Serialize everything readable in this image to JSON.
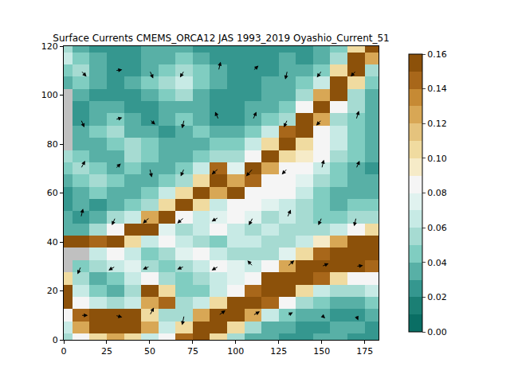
{
  "chart_data": {
    "type": "heatmap",
    "title": "Surface Currents CMEMS_ORCA12 JAS 1993_2019 Oyashio_Current_51",
    "x": [
      0,
      10,
      20,
      30,
      40,
      50,
      60,
      70,
      80,
      90,
      100,
      110,
      120,
      130,
      140,
      150,
      160,
      170,
      180
    ],
    "y": [
      0,
      5,
      10,
      15,
      20,
      25,
      30,
      35,
      40,
      45,
      50,
      55,
      60,
      65,
      70,
      75,
      80,
      85,
      90,
      95,
      100,
      105,
      110,
      115,
      120
    ],
    "z": [
      [
        0.05,
        0.08,
        0.1,
        0.12,
        0.1,
        0.06,
        0.08,
        0.14,
        0.15,
        0.1,
        0.05,
        0.03,
        0.03,
        0.02,
        0.02,
        0.03,
        0.03,
        0.02,
        0.02
      ],
      [
        0.06,
        0.12,
        0.15,
        0.15,
        0.15,
        0.12,
        0.06,
        0.1,
        0.15,
        0.15,
        0.1,
        0.05,
        0.03,
        0.03,
        0.02,
        0.02,
        0.03,
        0.03,
        0.02
      ],
      [
        0.08,
        0.14,
        0.15,
        0.15,
        0.15,
        0.1,
        0.05,
        0.05,
        0.12,
        0.15,
        0.15,
        0.12,
        0.06,
        0.04,
        0.03,
        0.03,
        0.02,
        0.02,
        0.03
      ],
      [
        0.15,
        0.08,
        0.06,
        0.05,
        0.06,
        0.12,
        0.14,
        0.05,
        0.06,
        0.1,
        0.15,
        0.15,
        0.14,
        0.08,
        0.05,
        0.04,
        0.03,
        0.03,
        0.04
      ],
      [
        0.15,
        0.06,
        0.04,
        0.03,
        0.05,
        0.15,
        0.1,
        0.04,
        0.04,
        0.06,
        0.08,
        0.14,
        0.15,
        0.15,
        0.1,
        0.06,
        0.05,
        0.05,
        0.06
      ],
      [
        0.1,
        0.05,
        0.03,
        0.04,
        0.06,
        0.08,
        0.05,
        0.04,
        0.05,
        0.06,
        0.07,
        0.08,
        0.15,
        0.15,
        0.15,
        0.14,
        0.1,
        0.08,
        0.08
      ],
      [
        null,
        0.04,
        0.05,
        0.06,
        0.07,
        0.05,
        0.04,
        0.05,
        0.06,
        0.08,
        0.07,
        0.06,
        0.08,
        0.12,
        0.15,
        0.15,
        0.15,
        0.15,
        0.14
      ],
      [
        null,
        null,
        0.06,
        0.08,
        0.06,
        0.04,
        0.05,
        0.07,
        0.08,
        0.06,
        0.05,
        0.05,
        0.05,
        0.07,
        0.1,
        0.14,
        0.15,
        0.15,
        0.15
      ],
      [
        0.15,
        0.15,
        0.14,
        0.15,
        0.1,
        0.06,
        0.08,
        0.06,
        0.05,
        0.04,
        0.06,
        0.06,
        0.05,
        0.05,
        0.06,
        0.09,
        0.12,
        0.15,
        0.15
      ],
      [
        0.03,
        0.03,
        0.05,
        0.08,
        0.15,
        0.15,
        0.07,
        0.05,
        0.06,
        0.08,
        0.06,
        0.05,
        0.06,
        0.05,
        0.05,
        0.05,
        0.06,
        0.08,
        0.1
      ],
      [
        0.03,
        0.02,
        0.03,
        0.05,
        0.06,
        0.12,
        0.15,
        0.08,
        0.06,
        0.07,
        0.08,
        0.07,
        0.05,
        0.06,
        0.05,
        0.04,
        0.04,
        0.05,
        0.05
      ],
      [
        0.02,
        0.03,
        0.02,
        0.03,
        0.04,
        0.05,
        0.1,
        0.15,
        0.1,
        0.06,
        0.08,
        0.08,
        0.07,
        0.06,
        0.05,
        0.04,
        0.03,
        0.04,
        0.04
      ],
      [
        0.02,
        0.03,
        0.04,
        0.03,
        0.03,
        0.04,
        0.06,
        0.1,
        0.15,
        0.12,
        0.15,
        0.08,
        0.08,
        0.08,
        0.06,
        0.04,
        0.03,
        0.03,
        0.03
      ],
      [
        0.03,
        0.04,
        0.05,
        0.04,
        0.03,
        0.03,
        0.04,
        0.05,
        0.1,
        0.15,
        0.12,
        0.14,
        0.08,
        0.08,
        0.07,
        0.05,
        0.04,
        0.03,
        0.03
      ],
      [
        0.04,
        0.05,
        0.04,
        0.03,
        0.04,
        0.03,
        0.03,
        0.04,
        0.06,
        0.14,
        0.07,
        0.15,
        0.12,
        0.08,
        0.08,
        0.06,
        0.04,
        0.03,
        0.02
      ],
      [
        0.05,
        0.04,
        0.03,
        0.03,
        0.05,
        0.04,
        0.03,
        0.03,
        0.04,
        0.05,
        0.05,
        0.08,
        0.15,
        0.1,
        0.09,
        0.08,
        0.05,
        0.04,
        0.03
      ],
      [
        null,
        0.03,
        0.03,
        0.04,
        0.05,
        0.04,
        0.03,
        0.03,
        0.03,
        0.04,
        0.04,
        0.06,
        0.1,
        0.15,
        0.1,
        0.08,
        0.06,
        0.04,
        0.03
      ],
      [
        null,
        0.03,
        0.04,
        0.05,
        0.03,
        0.03,
        0.02,
        0.03,
        0.04,
        0.03,
        0.03,
        0.04,
        0.06,
        0.14,
        0.15,
        0.08,
        0.06,
        0.04,
        0.03
      ],
      [
        null,
        0.02,
        0.03,
        0.04,
        0.03,
        0.02,
        0.03,
        0.04,
        0.03,
        0.02,
        0.02,
        0.03,
        0.04,
        0.05,
        0.15,
        0.12,
        0.05,
        0.04,
        0.03
      ],
      [
        null,
        0.02,
        0.03,
        0.03,
        0.02,
        0.02,
        0.03,
        0.03,
        0.03,
        0.02,
        0.02,
        0.03,
        0.03,
        0.04,
        0.08,
        0.15,
        0.08,
        0.05,
        0.03
      ],
      [
        null,
        0.03,
        0.02,
        0.02,
        0.02,
        0.03,
        0.04,
        0.05,
        0.03,
        0.02,
        0.02,
        0.02,
        0.03,
        0.03,
        0.05,
        0.12,
        0.15,
        0.05,
        0.03
      ],
      [
        0.03,
        0.04,
        0.03,
        0.02,
        0.03,
        0.04,
        0.05,
        0.06,
        0.04,
        0.03,
        0.02,
        0.02,
        0.03,
        0.03,
        0.04,
        0.06,
        0.15,
        0.1,
        0.04
      ],
      [
        0.04,
        0.05,
        0.03,
        0.02,
        0.02,
        0.03,
        0.04,
        0.05,
        0.04,
        0.03,
        0.02,
        0.02,
        0.02,
        0.03,
        0.03,
        0.04,
        0.1,
        0.15,
        0.05
      ],
      [
        0.06,
        0.04,
        0.03,
        0.02,
        0.02,
        0.03,
        0.03,
        0.04,
        0.03,
        0.02,
        0.02,
        0.02,
        0.02,
        0.03,
        0.02,
        0.03,
        0.05,
        0.15,
        0.12
      ],
      [
        0.05,
        0.03,
        0.02,
        0.02,
        0.02,
        0.03,
        0.03,
        0.03,
        0.02,
        0.02,
        0.02,
        0.02,
        0.02,
        0.02,
        0.02,
        0.03,
        0.04,
        0.1,
        0.15
      ]
    ],
    "xlim": [
      0,
      183
    ],
    "ylim": [
      0,
      120
    ],
    "xticks": [
      0,
      25,
      50,
      75,
      100,
      125,
      150,
      175
    ],
    "yticks": [
      0,
      20,
      40,
      60,
      80,
      100,
      120
    ],
    "colorbar": {
      "range": [
        0,
        0.16
      ],
      "ticks": [
        {
          "value": 0,
          "label": "0.00"
        },
        {
          "value": 0.02,
          "label": "0.02"
        },
        {
          "value": 0.04,
          "label": "0.04"
        },
        {
          "value": 0.06,
          "label": "0.06"
        },
        {
          "value": 0.08,
          "label": "0.08"
        },
        {
          "value": 0.1,
          "label": "0.10"
        },
        {
          "value": 0.12,
          "label": "0.12"
        },
        {
          "value": 0.14,
          "label": "0.14"
        },
        {
          "value": 0.16,
          "label": "0.16"
        }
      ]
    },
    "colors": [
      "#0a6e64",
      "#1b7f74",
      "#35978f",
      "#58b0a6",
      "#80cdc1",
      "#a6dbd2",
      "#c7eae5",
      "#e0f2ef",
      "#f5f5f5",
      "#f6ebc8",
      "#f0dba0",
      "#e5c37d",
      "#d8a755",
      "#c68a34",
      "#a8671a",
      "#8c510a"
    ],
    "arrows": {
      "x": [
        10,
        30,
        50,
        70,
        90,
        110,
        130,
        150,
        170
      ],
      "y": [
        10,
        30,
        50,
        70,
        90,
        110
      ],
      "u": [
        [
          1,
          1,
          0.6,
          -0.3,
          1,
          1,
          0.8,
          0.5,
          0.3
        ],
        [
          -0.5,
          -1,
          -1,
          -1,
          -1,
          -0.8,
          1,
          1,
          1
        ],
        [
          0.3,
          -0.5,
          -1,
          -1,
          -1,
          -0.6,
          0.5,
          -0.5,
          -0.3
        ],
        [
          0.6,
          0.8,
          0.3,
          -0.5,
          -1,
          -1,
          -0.8,
          0.3,
          0.5
        ],
        [
          0.5,
          1,
          0.8,
          -0.3,
          -0.5,
          0.5,
          -0.5,
          -0.8,
          0.4
        ],
        [
          0.8,
          1,
          0.5,
          -0.6,
          0.3,
          0.8,
          -0.3,
          -0.7,
          -0.8
        ]
      ],
      "v": [
        [
          0,
          -0.2,
          0.8,
          -1,
          0.5,
          0.4,
          0.3,
          -0.3,
          -0.5
        ],
        [
          -0.8,
          -0.4,
          -0.3,
          -0.3,
          -0.4,
          0.6,
          0.6,
          0.3,
          0.1
        ],
        [
          0.9,
          -0.8,
          -0.6,
          -0.6,
          -0.4,
          -0.8,
          0.8,
          -0.8,
          -0.9
        ],
        [
          0.8,
          0.5,
          -0.9,
          -0.8,
          -0.6,
          -0.8,
          -0.6,
          0.9,
          0.8
        ],
        [
          -0.8,
          0.2,
          -0.5,
          -0.9,
          0.8,
          0.8,
          -0.8,
          -0.6,
          0.9
        ],
        [
          -0.6,
          0.1,
          -0.8,
          -0.7,
          0.9,
          0.5,
          -0.9,
          -0.7,
          -0.6
        ]
      ]
    }
  }
}
